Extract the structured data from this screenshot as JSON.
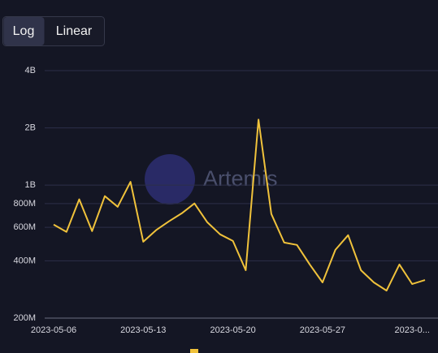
{
  "controls": {
    "scale_buttons": [
      "Log",
      "Linear"
    ],
    "active": 0
  },
  "watermark": "Artemis",
  "chart_data": {
    "type": "line",
    "log_scale": true,
    "grid": true,
    "x": [
      "2023-05-06",
      "2023-05-07",
      "2023-05-08",
      "2023-05-09",
      "2023-05-10",
      "2023-05-11",
      "2023-05-12",
      "2023-05-13",
      "2023-05-14",
      "2023-05-15",
      "2023-05-16",
      "2023-05-17",
      "2023-05-18",
      "2023-05-19",
      "2023-05-20",
      "2023-05-21",
      "2023-05-22",
      "2023-05-23",
      "2023-05-24",
      "2023-05-25",
      "2023-05-26",
      "2023-05-27",
      "2023-05-28",
      "2023-05-29",
      "2023-05-30",
      "2023-05-31",
      "2023-06-01",
      "2023-06-02",
      "2023-06-03",
      "2023-06-04"
    ],
    "series": [
      {
        "color": "#f0c23b",
        "values": [
          620000000,
          568000000,
          842000000,
          573000000,
          875000000,
          770000000,
          1040000000,
          504000000,
          580000000,
          645000000,
          711000000,
          801000000,
          638000000,
          551000000,
          509000000,
          357000000,
          2210000000,
          705000000,
          499000000,
          485000000,
          383000000,
          308000000,
          457000000,
          546000000,
          357000000,
          308000000,
          279000000,
          383000000,
          302000000,
          317000000
        ]
      }
    ],
    "xlim": [
      "2023-05-06",
      "2023-06-04"
    ],
    "xticks": [
      "2023-05-06",
      "2023-05-13",
      "2023-05-20",
      "2023-05-27",
      {
        "value": "2023-06-03",
        "label": "2023-0..."
      }
    ],
    "ylim": [
      200000000,
      4000000000
    ],
    "yticks": [
      {
        "value": 200000000,
        "label": "200M"
      },
      {
        "value": 400000000,
        "label": "400M"
      },
      {
        "value": 600000000,
        "label": "600M"
      },
      {
        "value": 800000000,
        "label": "800M"
      },
      {
        "value": 1000000000,
        "label": "1B"
      },
      {
        "value": 2000000000,
        "label": "2B"
      },
      {
        "value": 4000000000,
        "label": "4B"
      }
    ]
  }
}
